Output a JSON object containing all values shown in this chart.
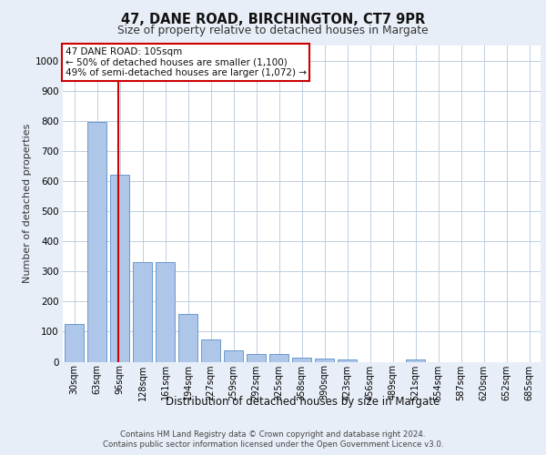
{
  "title1": "47, DANE ROAD, BIRCHINGTON, CT7 9PR",
  "title2": "Size of property relative to detached houses in Margate",
  "xlabel": "Distribution of detached houses by size in Margate",
  "ylabel": "Number of detached properties",
  "annotation_line1": "47 DANE ROAD: 105sqm",
  "annotation_line2": "← 50% of detached houses are smaller (1,100)",
  "annotation_line3": "49% of semi-detached houses are larger (1,072) →",
  "bar_labels": [
    "30sqm",
    "63sqm",
    "96sqm",
    "128sqm",
    "161sqm",
    "194sqm",
    "227sqm",
    "259sqm",
    "292sqm",
    "325sqm",
    "358sqm",
    "390sqm",
    "423sqm",
    "456sqm",
    "489sqm",
    "521sqm",
    "554sqm",
    "587sqm",
    "620sqm",
    "652sqm",
    "685sqm"
  ],
  "bar_values": [
    125,
    795,
    620,
    330,
    330,
    160,
    75,
    38,
    25,
    25,
    15,
    12,
    7,
    0,
    0,
    8,
    0,
    0,
    0,
    0,
    0
  ],
  "bar_color": "#aec6e8",
  "bar_edge_color": "#5b8fc9",
  "vline_x_index": 2,
  "vline_color": "#cc0000",
  "ylim": [
    0,
    1050
  ],
  "yticks": [
    0,
    100,
    200,
    300,
    400,
    500,
    600,
    700,
    800,
    900,
    1000
  ],
  "bg_color": "#e8eef7",
  "plot_bg": "#ffffff",
  "annotation_box_color": "#ffffff",
  "annotation_box_edge": "#cc0000",
  "footer1": "Contains HM Land Registry data © Crown copyright and database right 2024.",
  "footer2": "Contains public sector information licensed under the Open Government Licence v3.0."
}
